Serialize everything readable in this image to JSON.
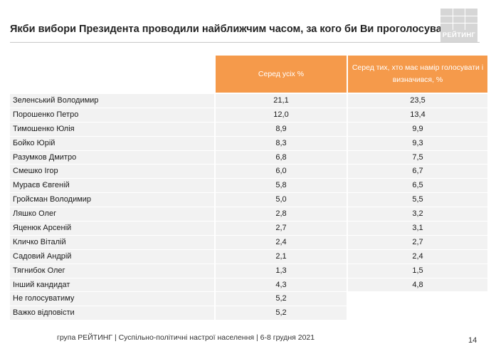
{
  "title": "Якби вибори Президента проводили найближчим часом, за кого би Ви проголосували?",
  "logo_text": "РЕЙТИНГ",
  "columns": [
    "Серед усіх %",
    "Серед тих, хто має намір голосувати і визначився, %"
  ],
  "rows": [
    {
      "name": "Зеленський Володимир",
      "all": "21,1",
      "decided": "23,5"
    },
    {
      "name": "Порошенко Петро",
      "all": "12,0",
      "decided": "13,4"
    },
    {
      "name": "Тимошенко Юлія",
      "all": "8,9",
      "decided": "9,9"
    },
    {
      "name": "Бойко Юрій",
      "all": "8,3",
      "decided": "9,3"
    },
    {
      "name": "Разумков Дмитро",
      "all": "6,8",
      "decided": "7,5"
    },
    {
      "name": "Смешко Ігор",
      "all": "6,0",
      "decided": "6,7"
    },
    {
      "name": "Мураєв Євгеній",
      "all": "5,8",
      "decided": "6,5"
    },
    {
      "name": "Гройсман Володимир",
      "all": "5,0",
      "decided": "5,5"
    },
    {
      "name": "Ляшко Олег",
      "all": "2,8",
      "decided": "3,2"
    },
    {
      "name": "Яценюк Арсеній",
      "all": "2,7",
      "decided": "3,1"
    },
    {
      "name": "Кличко Віталій",
      "all": "2,4",
      "decided": "2,7"
    },
    {
      "name": "Садовий Андрій",
      "all": "2,1",
      "decided": "2,4"
    },
    {
      "name": "Тягнибок Олег",
      "all": "1,3",
      "decided": "1,5"
    },
    {
      "name": "Інший кандидат",
      "all": "4,3",
      "decided": "4,8"
    },
    {
      "name": "Не голосуватиму",
      "all": "5,2",
      "decided": ""
    },
    {
      "name": "Важко відповісти",
      "all": "5,2",
      "decided": ""
    }
  ],
  "footer": "група РЕЙТИНГ | Суспільно-політичні настрої населення | 6-8 грудня 2021",
  "page_number": "14",
  "colors": {
    "header_bg": "#f59a4b",
    "row_bg": "#f2f2f2",
    "logo_bg": "#d6d6d6"
  }
}
